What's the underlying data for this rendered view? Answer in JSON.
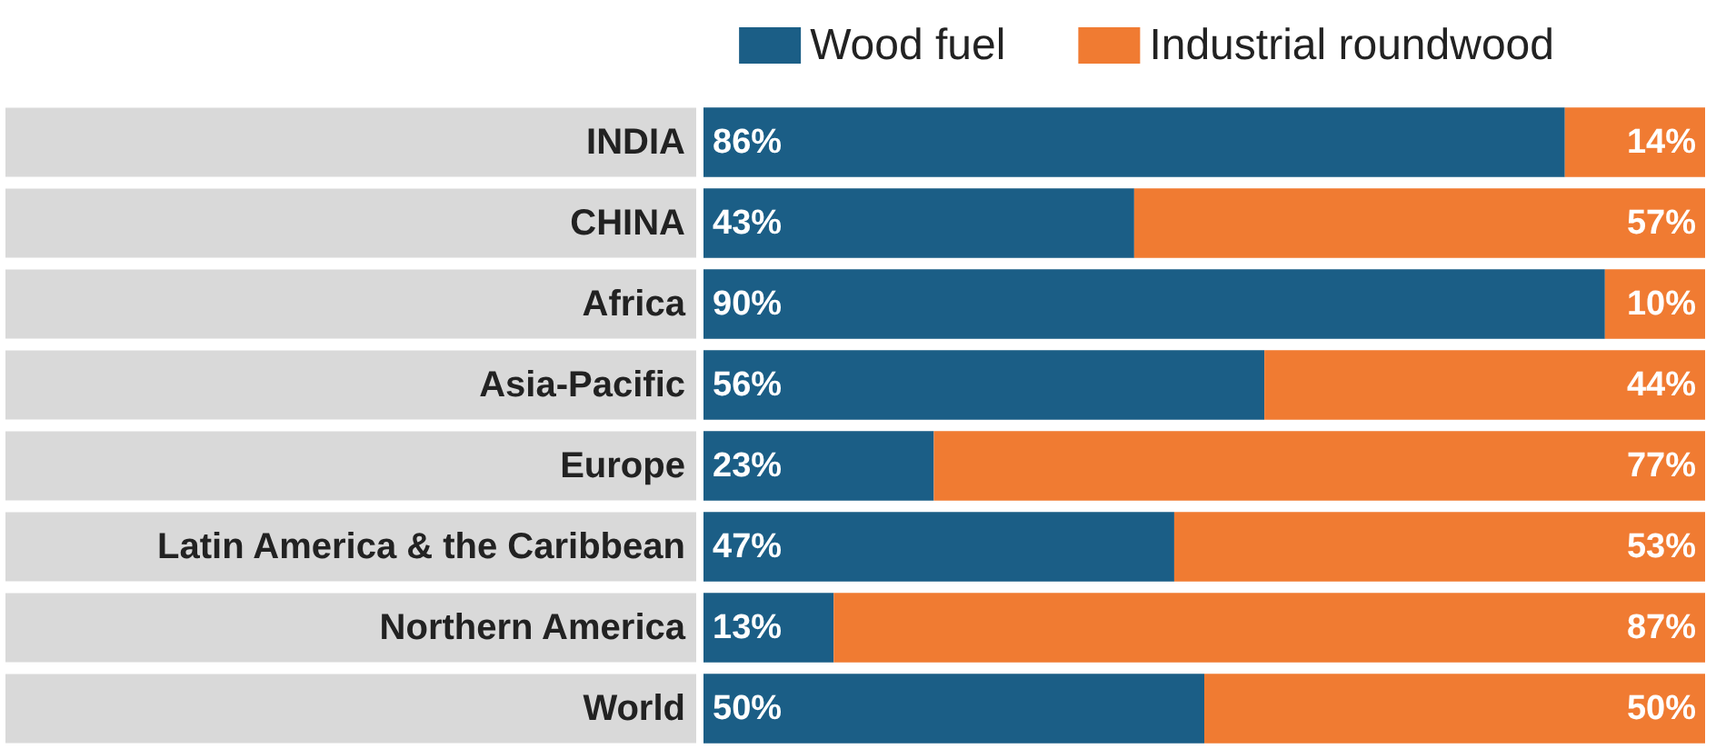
{
  "chart_data": {
    "type": "bar",
    "orientation": "horizontal",
    "stacked": true,
    "categories": [
      "INDIA",
      "CHINA",
      "Africa",
      "Asia-Pacific",
      "Europe",
      "Latin America & the Caribbean",
      "Northern America",
      "World"
    ],
    "series": [
      {
        "name": "Wood fuel",
        "color": "#1b5e86",
        "values": [
          86,
          43,
          90,
          56,
          23,
          47,
          13,
          50
        ],
        "value_labels": [
          "86%",
          "43%",
          "90%",
          "56%",
          "23%",
          "47%",
          "13%",
          "50%"
        ]
      },
      {
        "name": "Industrial roundwood",
        "color": "#f07b32",
        "values": [
          14,
          57,
          10,
          44,
          77,
          53,
          87,
          50
        ],
        "value_labels": [
          "14%",
          "57%",
          "10%",
          "44%",
          "77%",
          "53%",
          "87%",
          "50%"
        ]
      }
    ],
    "xlim": [
      0,
      100
    ],
    "tick_labels": "y",
    "grid": false,
    "legend": "top"
  }
}
